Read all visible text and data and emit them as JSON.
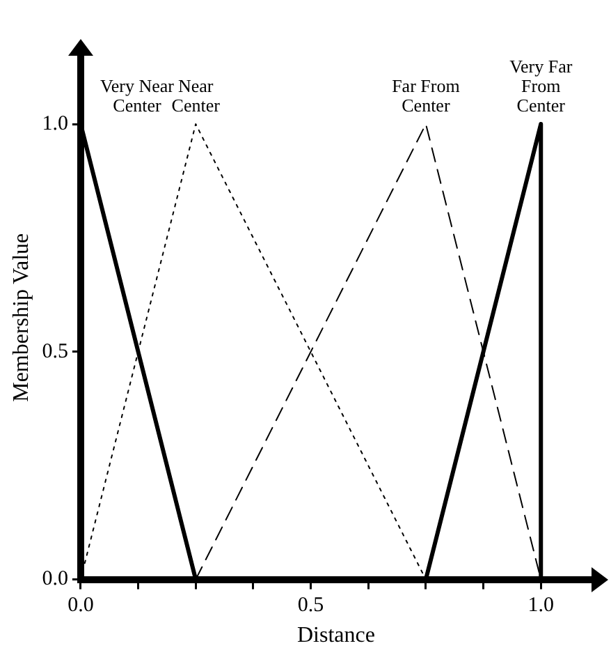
{
  "chart_data": {
    "type": "line",
    "xlabel": "Distance",
    "ylabel": "Membership Value",
    "xlim": [
      0,
      1.11
    ],
    "ylim": [
      0,
      1.15
    ],
    "xticks": [
      {
        "value": 0,
        "label": "0.0"
      },
      {
        "value": 0.125,
        "label": null
      },
      {
        "value": 0.25,
        "label": null
      },
      {
        "value": 0.375,
        "label": null
      },
      {
        "value": 0.5,
        "label": "0.5"
      },
      {
        "value": 0.625,
        "label": null
      },
      {
        "value": 0.75,
        "label": null
      },
      {
        "value": 0.875,
        "label": null
      },
      {
        "value": 1,
        "label": "1.0"
      }
    ],
    "yticks": [
      {
        "value": 0,
        "label": "0.0"
      },
      {
        "value": 0.5,
        "label": "0.5"
      },
      {
        "value": 1,
        "label": "1.0"
      }
    ],
    "grid": false,
    "legend": false,
    "marker": "none",
    "series": [
      {
        "name": "Very Near Center",
        "color": "#000000",
        "line_style": "solid",
        "x": [
          0,
          0.25
        ],
        "values": [
          1,
          0
        ]
      },
      {
        "name": "Near Center",
        "color": "#000000",
        "line_style": "dotted",
        "x": [
          0,
          0.25,
          0.75
        ],
        "values": [
          0,
          1,
          0
        ]
      },
      {
        "name": "Far From Center",
        "color": "#000000",
        "line_style": "dashed",
        "x": [
          0.25,
          0.75,
          1
        ],
        "values": [
          0,
          1,
          0
        ]
      },
      {
        "name": "Very Far From Center",
        "color": "#000000",
        "line_style": "solid",
        "x": [
          0.75,
          1,
          1
        ],
        "values": [
          0,
          1,
          0
        ]
      }
    ]
  }
}
